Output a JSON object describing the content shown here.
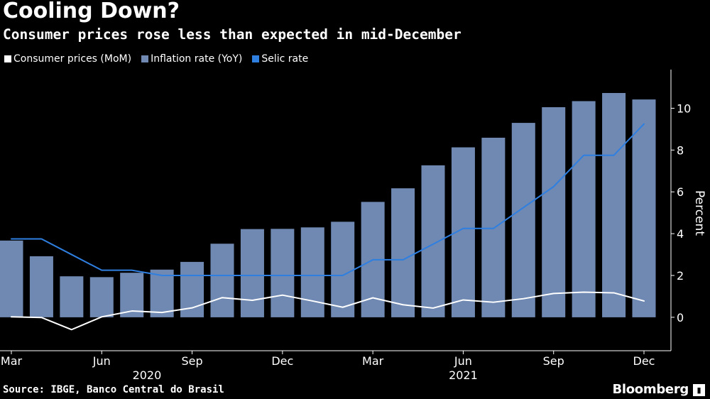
{
  "title": "Cooling Down?",
  "subtitle": "Consumer prices rose less than expected in mid-December",
  "legend": [
    {
      "label": "Consumer prices (MoM)",
      "color": "#ffffff"
    },
    {
      "label": "Inflation rate (YoY)",
      "color": "#6f89b3"
    },
    {
      "label": "Selic rate",
      "color": "#2f7fe0"
    }
  ],
  "source": "Source: IBGE, Banco Central do Brasil",
  "brand": "Bloomberg",
  "chart_data": {
    "type": "bar",
    "categories": [
      "Mar 2020",
      "Apr 2020",
      "May 2020",
      "Jun 2020",
      "Jul 2020",
      "Aug 2020",
      "Sep 2020",
      "Oct 2020",
      "Nov 2020",
      "Dec 2020",
      "Jan 2021",
      "Feb 2021",
      "Mar 2021",
      "Apr 2021",
      "May 2021",
      "Jun 2021",
      "Jul 2021",
      "Aug 2021",
      "Sep 2021",
      "Oct 2021",
      "Nov 2021",
      "Dec 2021"
    ],
    "series": [
      {
        "name": "Inflation rate (YoY)",
        "kind": "bar",
        "color": "#6f89b3",
        "values": [
          3.67,
          2.92,
          1.96,
          1.92,
          2.13,
          2.28,
          2.65,
          3.52,
          4.22,
          4.23,
          4.3,
          4.57,
          5.52,
          6.17,
          7.27,
          8.13,
          8.59,
          9.3,
          10.05,
          10.34,
          10.73,
          10.42
        ]
      },
      {
        "name": "Selic rate",
        "kind": "line",
        "color": "#2f7fe0",
        "values": [
          3.75,
          3.75,
          3.0,
          2.25,
          2.25,
          2.0,
          2.0,
          2.0,
          2.0,
          2.0,
          2.0,
          2.0,
          2.75,
          2.75,
          3.5,
          4.25,
          4.25,
          5.25,
          6.25,
          7.75,
          7.75,
          9.25
        ]
      },
      {
        "name": "Consumer prices (MoM)",
        "kind": "line",
        "color": "#ffffff",
        "values": [
          0.02,
          -0.01,
          -0.59,
          0.02,
          0.3,
          0.23,
          0.45,
          0.94,
          0.81,
          1.06,
          0.78,
          0.48,
          0.93,
          0.6,
          0.44,
          0.83,
          0.72,
          0.89,
          1.14,
          1.2,
          1.17,
          0.78
        ]
      }
    ],
    "x_tick_labels": [
      {
        "index": 0,
        "label": "Mar"
      },
      {
        "index": 3,
        "label": "Jun"
      },
      {
        "index": 6,
        "label": "Sep"
      },
      {
        "index": 9,
        "label": "Dec"
      },
      {
        "index": 12,
        "label": "Mar"
      },
      {
        "index": 15,
        "label": "Jun"
      },
      {
        "index": 18,
        "label": "Sep"
      },
      {
        "index": 21,
        "label": "Dec"
      }
    ],
    "year_labels": [
      {
        "label": "2020",
        "center_index": 4.5
      },
      {
        "label": "2021",
        "center_index": 15
      }
    ],
    "ylabel": "Percent",
    "yticks": [
      0,
      2,
      4,
      6,
      8,
      10
    ],
    "ylim": [
      -1.6,
      11.85
    ],
    "grid": false,
    "legend_position": "top-left"
  }
}
